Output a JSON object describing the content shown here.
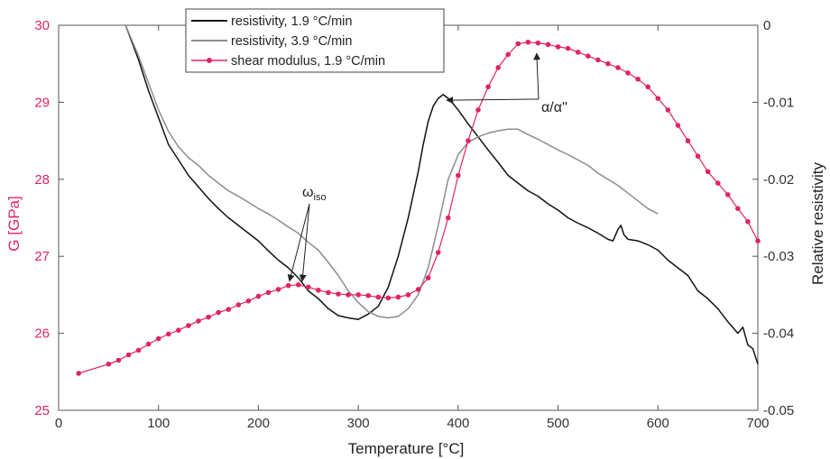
{
  "chart_data": {
    "type": "line",
    "xlabel": "Temperature [°C]",
    "ylabel_left": "G [GPa]",
    "ylabel_right": "Relative resistivity",
    "xlim": [
      0,
      700
    ],
    "ylim_left": [
      25,
      30
    ],
    "ylim_right": [
      -0.05,
      0
    ],
    "x_ticks": [
      0,
      100,
      200,
      300,
      400,
      500,
      600,
      700
    ],
    "y_left_ticks": [
      25,
      26,
      27,
      28,
      29,
      30
    ],
    "y_right_ticks": [
      -0.05,
      -0.04,
      -0.03,
      -0.02,
      -0.01,
      0
    ],
    "grid": false,
    "legend_position": "top-center",
    "colors": {
      "resistivity_1_9": "#111111",
      "resistivity_3_9": "#8c8c8c",
      "shear_modulus": "#e02460"
    },
    "series": [
      {
        "name": "resistivity, 1.9 °C/min",
        "axis": "right",
        "marker": "none",
        "x": [
          67,
          80,
          90,
          100,
          110,
          120,
          130,
          140,
          150,
          160,
          170,
          180,
          190,
          200,
          210,
          220,
          230,
          240,
          250,
          260,
          270,
          280,
          290,
          300,
          310,
          320,
          330,
          340,
          350,
          360,
          365,
          370,
          375,
          380,
          385,
          390,
          395,
          400,
          410,
          420,
          430,
          440,
          450,
          460,
          470,
          480,
          490,
          500,
          510,
          520,
          530,
          540,
          550,
          555,
          560,
          563,
          566,
          570,
          580,
          590,
          600,
          610,
          620,
          630,
          640,
          650,
          660,
          670,
          680,
          685,
          690,
          695,
          700
        ],
        "y": [
          0,
          -0.0045,
          -0.0085,
          -0.012,
          -0.0155,
          -0.0175,
          -0.0195,
          -0.021,
          -0.0225,
          -0.0238,
          -0.025,
          -0.026,
          -0.027,
          -0.028,
          -0.0293,
          -0.0305,
          -0.0315,
          -0.0328,
          -0.0345,
          -0.0355,
          -0.0368,
          -0.0377,
          -0.038,
          -0.0382,
          -0.0375,
          -0.0365,
          -0.034,
          -0.03,
          -0.025,
          -0.019,
          -0.0155,
          -0.0125,
          -0.0105,
          -0.0095,
          -0.009,
          -0.0095,
          -0.0102,
          -0.011,
          -0.0128,
          -0.0145,
          -0.0162,
          -0.0178,
          -0.0195,
          -0.0205,
          -0.0215,
          -0.0222,
          -0.0232,
          -0.024,
          -0.025,
          -0.0257,
          -0.0263,
          -0.027,
          -0.0278,
          -0.028,
          -0.0265,
          -0.026,
          -0.0272,
          -0.0278,
          -0.028,
          -0.0285,
          -0.0292,
          -0.0305,
          -0.0315,
          -0.0325,
          -0.0345,
          -0.0355,
          -0.0368,
          -0.0385,
          -0.04,
          -0.0392,
          -0.0415,
          -0.042,
          -0.044
        ]
      },
      {
        "name": "resistivity, 3.9 °C/min",
        "axis": "right",
        "marker": "none",
        "x": [
          67,
          80,
          90,
          100,
          110,
          120,
          130,
          140,
          150,
          160,
          170,
          180,
          190,
          200,
          210,
          220,
          230,
          240,
          250,
          260,
          270,
          280,
          290,
          300,
          310,
          320,
          330,
          340,
          350,
          360,
          370,
          380,
          390,
          400,
          410,
          420,
          430,
          440,
          450,
          460,
          470,
          480,
          490,
          500,
          510,
          520,
          530,
          540,
          550,
          560,
          570,
          580,
          590,
          600
        ],
        "y": [
          0,
          -0.004,
          -0.0075,
          -0.011,
          -0.0138,
          -0.0158,
          -0.0172,
          -0.0182,
          -0.0195,
          -0.0205,
          -0.0215,
          -0.0222,
          -0.023,
          -0.0238,
          -0.0245,
          -0.0253,
          -0.0262,
          -0.027,
          -0.0282,
          -0.0292,
          -0.0308,
          -0.0325,
          -0.0345,
          -0.036,
          -0.0372,
          -0.0378,
          -0.038,
          -0.0378,
          -0.0368,
          -0.035,
          -0.0315,
          -0.026,
          -0.02,
          -0.0168,
          -0.0152,
          -0.0145,
          -0.014,
          -0.0137,
          -0.0135,
          -0.0135,
          -0.0142,
          -0.0148,
          -0.0155,
          -0.0162,
          -0.0168,
          -0.0175,
          -0.0182,
          -0.0192,
          -0.02,
          -0.0208,
          -0.0218,
          -0.0228,
          -0.0238,
          -0.0245
        ]
      },
      {
        "name": "shear modulus, 1.9 °C/min",
        "axis": "left",
        "marker": "circle",
        "x": [
          20,
          50,
          60,
          70,
          80,
          90,
          100,
          110,
          120,
          130,
          140,
          150,
          160,
          170,
          180,
          190,
          200,
          210,
          220,
          230,
          240,
          250,
          260,
          270,
          280,
          290,
          300,
          310,
          320,
          330,
          340,
          350,
          360,
          370,
          380,
          390,
          400,
          410,
          420,
          430,
          440,
          450,
          460,
          470,
          480,
          490,
          500,
          510,
          520,
          530,
          540,
          550,
          560,
          570,
          580,
          590,
          600,
          610,
          620,
          630,
          640,
          650,
          660,
          670,
          680,
          690,
          700
        ],
        "y": [
          25.48,
          25.6,
          25.65,
          25.72,
          25.78,
          25.86,
          25.93,
          25.99,
          26.04,
          26.1,
          26.16,
          26.21,
          26.27,
          26.31,
          26.37,
          26.42,
          26.48,
          26.53,
          26.57,
          26.62,
          26.63,
          26.6,
          26.56,
          26.53,
          26.51,
          26.5,
          26.5,
          26.49,
          26.47,
          26.46,
          26.47,
          26.5,
          26.57,
          26.72,
          27.05,
          27.5,
          28.05,
          28.5,
          28.9,
          29.2,
          29.45,
          29.62,
          29.76,
          29.78,
          29.77,
          29.75,
          29.72,
          29.7,
          29.65,
          29.6,
          29.55,
          29.5,
          29.45,
          29.38,
          29.3,
          29.2,
          29.05,
          28.9,
          28.7,
          28.5,
          28.3,
          28.1,
          27.95,
          27.8,
          27.62,
          27.45,
          27.2
        ]
      }
    ],
    "annotations": [
      {
        "text": "α/α''",
        "target": [
          [
            385,
            -0.0095
          ],
          [
            475,
            29.75
          ]
        ]
      },
      {
        "text": "ω",
        "subscript": "iso",
        "target": [
          [
            232,
            26.62
          ],
          [
            243,
            26.62
          ]
        ]
      }
    ]
  }
}
